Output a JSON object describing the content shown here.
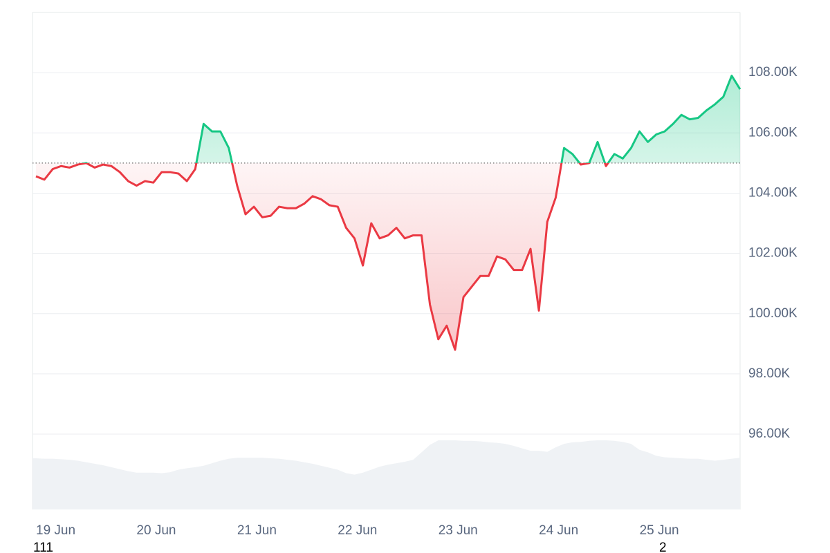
{
  "chart_data": {
    "type": "line",
    "categories": [
      "19 Jun",
      null,
      null,
      null,
      null,
      null,
      null,
      null,
      null,
      null,
      null,
      null,
      "20 Jun",
      null,
      null,
      null,
      null,
      null,
      null,
      null,
      null,
      null,
      null,
      null,
      "21 Jun",
      null,
      null,
      null,
      null,
      null,
      null,
      null,
      null,
      null,
      null,
      null,
      "22 Jun",
      null,
      null,
      null,
      null,
      null,
      null,
      null,
      null,
      null,
      null,
      null,
      "23 Jun",
      null,
      null,
      null,
      null,
      null,
      null,
      null,
      null,
      null,
      null,
      null,
      "24 Jun",
      null,
      null,
      null,
      null,
      null,
      null,
      null,
      null,
      null,
      null,
      null,
      "25 Jun",
      null,
      null,
      null,
      null,
      null,
      null,
      null,
      null,
      null,
      null,
      null,
      null
    ],
    "series": [
      {
        "name": "Price",
        "color": "#ea3943",
        "color_up": "#16c784",
        "values": [
          104560,
          104450,
          104800,
          104900,
          104850,
          104950,
          105000,
          104850,
          104950,
          104900,
          104700,
          104400,
          104250,
          104400,
          104350,
          104700,
          104700,
          104650,
          104400,
          104800,
          106300,
          106050,
          106050,
          105500,
          104250,
          103300,
          103550,
          103200,
          103250,
          103550,
          103500,
          103500,
          103650,
          103900,
          103800,
          103600,
          103550,
          102850,
          102500,
          101600,
          103000,
          102500,
          102600,
          102850,
          102500,
          102600,
          102600,
          100300,
          99150,
          99600,
          98800,
          100550,
          100900,
          101250,
          101250,
          101900,
          101800,
          101450,
          101450,
          102150,
          100100,
          103050,
          103850,
          105500,
          105300,
          104950,
          105000,
          105700,
          104900,
          105300,
          105150,
          105500,
          106050,
          105700,
          105950,
          106050,
          106300,
          106600,
          106450,
          106500,
          106750,
          106950,
          107200,
          107900,
          107450
        ]
      },
      {
        "name": "Volume",
        "color": "#eff2f5",
        "axis": "y2",
        "values": [
          10.3,
          10.2,
          10.2,
          10.1,
          10,
          9.8,
          9.5,
          9.2,
          8.9,
          8.5,
          8.1,
          7.7,
          7.4,
          7.4,
          7.4,
          7.3,
          7.5,
          8,
          8.3,
          8.5,
          8.8,
          9.3,
          9.8,
          10.2,
          10.4,
          10.4,
          10.4,
          10.4,
          10.3,
          10.2,
          10,
          9.8,
          9.5,
          9.2,
          8.8,
          8.4,
          8.0,
          7.3,
          7.0,
          7.4,
          8,
          8.6,
          9,
          9.3,
          9.6,
          10,
          11.5,
          13,
          13.9,
          13.9,
          13.9,
          13.8,
          13.8,
          13.7,
          13.5,
          13.4,
          13.2,
          12.8,
          12.3,
          11.8,
          11.8,
          11.6,
          12.5,
          13.2,
          13.5,
          13.6,
          13.8,
          13.9,
          13.9,
          13.8,
          13.6,
          13.2,
          12.0,
          11.5,
          10.8,
          10.5,
          10.4,
          10.3,
          10.2,
          10.2,
          10,
          9.8,
          10,
          10.2,
          10.4
        ]
      }
    ],
    "reference": 105000,
    "ylim": [
      93500,
      110000
    ],
    "yticks": [
      {
        "value": 96000,
        "label": "96.00K"
      },
      {
        "value": 98000,
        "label": "98.00K"
      },
      {
        "value": 100000,
        "label": "100.00K"
      },
      {
        "value": 102000,
        "label": "102.00K"
      },
      {
        "value": 104000,
        "label": "104.00K"
      },
      {
        "value": 106000,
        "label": "106.00K"
      },
      {
        "value": 108000,
        "label": "108.00K"
      }
    ],
    "y2lim": [
      0,
      100
    ],
    "grid": true,
    "annotations": [
      "111",
      "2"
    ]
  }
}
